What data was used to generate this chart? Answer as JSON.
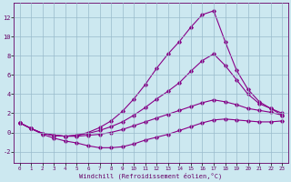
{
  "xlabel": "Windchill (Refroidissement éolien,°C)",
  "bg_color": "#cce8f0",
  "line_color": "#880088",
  "grid_color": "#99bbcc",
  "xlim": [
    -0.5,
    23.5
  ],
  "ylim": [
    -3.2,
    13.5
  ],
  "xticks": [
    0,
    1,
    2,
    3,
    4,
    5,
    6,
    7,
    8,
    9,
    10,
    11,
    12,
    13,
    14,
    15,
    16,
    17,
    18,
    19,
    20,
    21,
    22,
    23
  ],
  "yticks": [
    -2,
    0,
    2,
    4,
    6,
    8,
    10,
    12
  ],
  "line1_x": [
    0,
    1,
    2,
    3,
    4,
    5,
    6,
    7,
    8,
    9,
    10,
    11,
    12,
    13,
    14,
    15,
    16,
    17,
    18,
    19,
    20,
    21,
    22,
    23
  ],
  "line1_y": [
    1,
    0.4,
    -0.2,
    -0.6,
    -0.9,
    -1.1,
    -1.4,
    -1.6,
    -1.6,
    -1.5,
    -1.2,
    -0.8,
    -0.5,
    -0.2,
    0.2,
    0.6,
    1.0,
    1.3,
    1.4,
    1.3,
    1.2,
    1.1,
    1.1,
    1.2
  ],
  "line2_x": [
    0,
    1,
    2,
    3,
    4,
    5,
    6,
    7,
    8,
    9,
    10,
    11,
    12,
    13,
    14,
    15,
    16,
    17,
    18,
    19,
    20,
    21,
    22,
    23
  ],
  "line2_y": [
    1,
    0.4,
    -0.1,
    -0.3,
    -0.4,
    -0.4,
    -0.3,
    -0.2,
    0.0,
    0.3,
    0.7,
    1.1,
    1.5,
    1.9,
    2.3,
    2.7,
    3.1,
    3.4,
    3.2,
    2.9,
    2.5,
    2.3,
    2.1,
    1.8
  ],
  "line3_x": [
    0,
    1,
    2,
    3,
    4,
    5,
    6,
    7,
    8,
    9,
    10,
    11,
    12,
    13,
    14,
    15,
    16,
    17,
    18,
    19,
    20,
    21,
    22,
    23
  ],
  "line3_y": [
    1,
    0.4,
    -0.1,
    -0.3,
    -0.4,
    -0.3,
    -0.1,
    0.2,
    0.6,
    1.1,
    1.8,
    2.6,
    3.5,
    4.3,
    5.2,
    6.4,
    7.5,
    8.2,
    7.0,
    5.5,
    4.0,
    3.0,
    2.5,
    2.0
  ],
  "line4_x": [
    0,
    1,
    2,
    3,
    4,
    5,
    6,
    7,
    8,
    9,
    10,
    11,
    12,
    13,
    14,
    15,
    16,
    17,
    18,
    19,
    20,
    21,
    22,
    23
  ],
  "line4_y": [
    1,
    0.4,
    -0.1,
    -0.3,
    -0.4,
    -0.3,
    0.0,
    0.5,
    1.2,
    2.2,
    3.5,
    5.0,
    6.7,
    8.2,
    9.5,
    11.0,
    12.3,
    12.7,
    9.5,
    6.5,
    4.5,
    3.2,
    2.5,
    1.8
  ]
}
